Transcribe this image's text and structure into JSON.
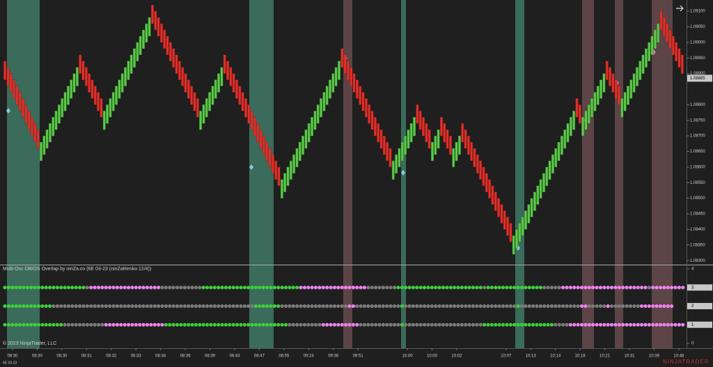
{
  "chart_data": [
    {
      "type": "candlestick",
      "up_color": "#5cc94a",
      "down_color": "#e0302a",
      "ylim": [
        1.08287,
        1.09136
      ],
      "yticks": [
        {
          "value": 1.083,
          "label": "1.08300"
        },
        {
          "value": 1.0835,
          "label": "1.08350"
        },
        {
          "value": 1.084,
          "label": "1.08400"
        },
        {
          "value": 1.0845,
          "label": "1.08450"
        },
        {
          "value": 1.085,
          "label": "1.08500"
        },
        {
          "value": 1.0855,
          "label": "1.08550"
        },
        {
          "value": 1.086,
          "label": "1.08600"
        },
        {
          "value": 1.0865,
          "label": "1.08650"
        },
        {
          "value": 1.087,
          "label": "1.08700"
        },
        {
          "value": 1.0875,
          "label": "1.08750"
        },
        {
          "value": 1.088,
          "label": "1.08800"
        },
        {
          "value": 1.089,
          "label": "1.08900"
        },
        {
          "value": 1.0895,
          "label": "1.08950"
        },
        {
          "value": 1.09,
          "label": "1.09000"
        },
        {
          "value": 1.0905,
          "label": "1.09050"
        },
        {
          "value": 1.091,
          "label": "1.09100"
        }
      ],
      "last_price": {
        "value": 1.08885,
        "label": "1.08885"
      },
      "x_labels": [
        "08:30",
        "08:30",
        "08:30",
        "08:31",
        "08:32",
        "08:33",
        "08:34",
        "08:36",
        "08:39",
        "08:43",
        "08:47",
        "08:55",
        "09:24",
        "09:36",
        "09:51",
        null,
        "10:00",
        "10:00",
        "10:02",
        null,
        "10:07",
        "10:13",
        "10:14",
        "10:18",
        "10:21",
        "10:31",
        "10:39",
        "10:48"
      ],
      "close": [
        1.0888,
        1.0886,
        1.0884,
        1.0882,
        1.088,
        1.0878,
        1.0876,
        1.0874,
        1.0872,
        1.087,
        1.0868,
        1.0866,
        1.0868,
        1.087,
        1.0872,
        1.0874,
        1.0876,
        1.0878,
        1.088,
        1.0882,
        1.0884,
        1.0886,
        1.0888,
        1.089,
        1.0892,
        1.089,
        1.0888,
        1.0886,
        1.0884,
        1.0882,
        1.088,
        1.0878,
        1.0876,
        1.0878,
        1.088,
        1.0882,
        1.0884,
        1.0886,
        1.0888,
        1.089,
        1.0892,
        1.0894,
        1.0896,
        1.0898,
        1.09,
        1.0902,
        1.0904,
        1.0906,
        1.0908,
        1.0906,
        1.0904,
        1.0902,
        1.09,
        1.0898,
        1.0896,
        1.0894,
        1.0892,
        1.089,
        1.0888,
        1.0886,
        1.0884,
        1.0882,
        1.088,
        1.0878,
        1.0876,
        1.0878,
        1.088,
        1.0882,
        1.0884,
        1.0886,
        1.0888,
        1.089,
        1.0892,
        1.089,
        1.0888,
        1.0886,
        1.0884,
        1.0882,
        1.088,
        1.0878,
        1.0876,
        1.0874,
        1.0872,
        1.087,
        1.0868,
        1.0866,
        1.0864,
        1.0862,
        1.086,
        1.0858,
        1.0856,
        1.0854,
        1.0856,
        1.0858,
        1.086,
        1.0862,
        1.0864,
        1.0866,
        1.0868,
        1.087,
        1.0872,
        1.0874,
        1.0876,
        1.0878,
        1.088,
        1.0882,
        1.0884,
        1.0886,
        1.0888,
        1.089,
        1.0892,
        1.0894,
        1.0892,
        1.089,
        1.0888,
        1.0886,
        1.0884,
        1.0882,
        1.088,
        1.0878,
        1.0876,
        1.0874,
        1.0872,
        1.087,
        1.0868,
        1.0866,
        1.0864,
        1.0862,
        1.086,
        1.0862,
        1.0864,
        1.0866,
        1.0868,
        1.087,
        1.0872,
        1.0874,
        1.0876,
        1.0874,
        1.0872,
        1.087,
        1.0868,
        1.0866,
        1.0868,
        1.087,
        1.0872,
        1.087,
        1.0868,
        1.0866,
        1.0864,
        1.0866,
        1.0868,
        1.087,
        1.0868,
        1.0866,
        1.0864,
        1.0862,
        1.086,
        1.0858,
        1.0856,
        1.0854,
        1.0852,
        1.085,
        1.0848,
        1.0846,
        1.0844,
        1.0842,
        1.084,
        1.0838,
        1.0836,
        1.0838,
        1.084,
        1.0842,
        1.0844,
        1.0846,
        1.0848,
        1.085,
        1.0852,
        1.0854,
        1.0856,
        1.0858,
        1.086,
        1.0862,
        1.0864,
        1.0866,
        1.0868,
        1.087,
        1.0872,
        1.0874,
        1.0876,
        1.0878,
        1.0876,
        1.0874,
        1.0876,
        1.0878,
        1.088,
        1.0882,
        1.0884,
        1.0886,
        1.0888,
        1.089,
        1.0888,
        1.0886,
        1.0884,
        1.0882,
        1.088,
        1.0882,
        1.0884,
        1.0886,
        1.0888,
        1.089,
        1.0892,
        1.0894,
        1.0896,
        1.0898,
        1.09,
        1.0902,
        1.0904,
        1.0906,
        1.0904,
        1.0902,
        1.09,
        1.0898,
        1.0896,
        1.0894,
        1.0892,
        1.089
      ],
      "open": [
        1.0894,
        1.0892,
        1.089,
        1.0888,
        1.0886,
        1.0884,
        1.0882,
        1.088,
        1.0878,
        1.0876,
        1.0874,
        1.0872,
        1.0862,
        1.0864,
        1.0866,
        1.0868,
        1.087,
        1.0872,
        1.0874,
        1.0876,
        1.0878,
        1.088,
        1.0882,
        1.0884,
        1.0886,
        1.0896,
        1.0894,
        1.0892,
        1.089,
        1.0888,
        1.0886,
        1.0884,
        1.0882,
        1.0872,
        1.0874,
        1.0876,
        1.0878,
        1.088,
        1.0882,
        1.0884,
        1.0886,
        1.0888,
        1.089,
        1.0892,
        1.0894,
        1.0896,
        1.0898,
        1.09,
        1.0902,
        1.0912,
        1.091,
        1.0908,
        1.0906,
        1.0904,
        1.0902,
        1.09,
        1.0898,
        1.0896,
        1.0894,
        1.0892,
        1.089,
        1.0888,
        1.0886,
        1.0884,
        1.0882,
        1.0872,
        1.0874,
        1.0876,
        1.0878,
        1.088,
        1.0882,
        1.0884,
        1.0886,
        1.0896,
        1.0894,
        1.0892,
        1.089,
        1.0888,
        1.0886,
        1.0884,
        1.0882,
        1.088,
        1.0878,
        1.0876,
        1.0874,
        1.0872,
        1.087,
        1.0868,
        1.0866,
        1.0864,
        1.0862,
        1.086,
        1.085,
        1.0852,
        1.0854,
        1.0856,
        1.0858,
        1.086,
        1.0862,
        1.0864,
        1.0866,
        1.0868,
        1.087,
        1.0872,
        1.0874,
        1.0876,
        1.0878,
        1.088,
        1.0882,
        1.0884,
        1.0886,
        1.0888,
        1.0898,
        1.0896,
        1.0894,
        1.0892,
        1.089,
        1.0888,
        1.0886,
        1.0884,
        1.0882,
        1.088,
        1.0878,
        1.0876,
        1.0874,
        1.0872,
        1.087,
        1.0868,
        1.0866,
        1.0856,
        1.0858,
        1.086,
        1.0862,
        1.0864,
        1.0866,
        1.0868,
        1.087,
        1.088,
        1.0878,
        1.0876,
        1.0874,
        1.0872,
        1.0862,
        1.0864,
        1.0866,
        1.0876,
        1.0874,
        1.0872,
        1.087,
        1.086,
        1.0862,
        1.0864,
        1.0874,
        1.0872,
        1.087,
        1.0868,
        1.0866,
        1.0864,
        1.0862,
        1.086,
        1.0858,
        1.0856,
        1.0854,
        1.0852,
        1.085,
        1.0848,
        1.0846,
        1.0844,
        1.0842,
        1.0832,
        1.0834,
        1.0836,
        1.0838,
        1.084,
        1.0842,
        1.0844,
        1.0846,
        1.0848,
        1.085,
        1.0852,
        1.0854,
        1.0856,
        1.0858,
        1.086,
        1.0862,
        1.0864,
        1.0866,
        1.0868,
        1.087,
        1.0872,
        1.0882,
        1.088,
        1.087,
        1.0872,
        1.0874,
        1.0876,
        1.0878,
        1.088,
        1.0882,
        1.0884,
        1.0894,
        1.0892,
        1.089,
        1.0888,
        1.0886,
        1.0876,
        1.0878,
        1.088,
        1.0882,
        1.0884,
        1.0886,
        1.0888,
        1.089,
        1.0892,
        1.0894,
        1.0896,
        1.0898,
        1.09,
        1.091,
        1.0908,
        1.0906,
        1.0904,
        1.0902,
        1.09,
        1.0898,
        1.0896
      ]
    },
    {
      "type": "dots",
      "title": "Multi-Osc OB/OS Overlap by ninZa.co (6E 03-23 (ninZaRenko 12/4))",
      "ylim": [
        -0.26,
        4.19
      ],
      "yticks": [
        0,
        1,
        2,
        3,
        4
      ],
      "state_colors": {
        "os": "#3ecf3e",
        "ob": "#ee82ee",
        "neutral": "#7c7c7c"
      },
      "rows": [
        {
          "level": 3,
          "runs": [
            [
              "os",
              22
            ],
            [
              "neutral",
              1
            ],
            [
              "ob",
              19
            ],
            [
              "neutral",
              11
            ],
            [
              "os",
              26
            ],
            [
              "ob",
              18
            ],
            [
              "neutral",
              8
            ],
            [
              "os",
              23
            ],
            [
              "neutral",
              1
            ],
            [
              "os",
              15
            ],
            [
              "neutral",
              5
            ],
            [
              "ob",
              23
            ],
            [
              "neutral",
              1
            ],
            [
              "ob",
              10
            ]
          ]
        },
        {
          "level": 2,
          "runs": [
            [
              "os",
              13
            ],
            [
              "neutral",
              54
            ],
            [
              "os",
              7
            ],
            [
              "neutral",
              18
            ],
            [
              "ob",
              2
            ],
            [
              "neutral",
              12
            ],
            [
              "os",
              1
            ],
            [
              "neutral",
              30
            ],
            [
              "os",
              1
            ],
            [
              "neutral",
              16
            ],
            [
              "ob",
              2
            ],
            [
              "neutral",
              5
            ],
            [
              "ob",
              1
            ],
            [
              "neutral",
              8
            ],
            [
              "ob",
              9
            ]
          ]
        },
        {
          "level": 1,
          "runs": [
            [
              "os",
              16
            ],
            [
              "neutral",
              11
            ],
            [
              "ob",
              16
            ],
            [
              "os",
              33
            ],
            [
              "neutral",
              9
            ],
            [
              "ob",
              10
            ],
            [
              "neutral",
              11
            ],
            [
              "os",
              1
            ],
            [
              "neutral",
              21
            ],
            [
              "os",
              19
            ],
            [
              "neutral",
              4
            ],
            [
              "ob",
              32
            ]
          ]
        }
      ]
    }
  ],
  "copyright": "© 2023 NinjaTrader, LLC",
  "instrument": "6E 03-23",
  "brand": "NINJATRADER"
}
